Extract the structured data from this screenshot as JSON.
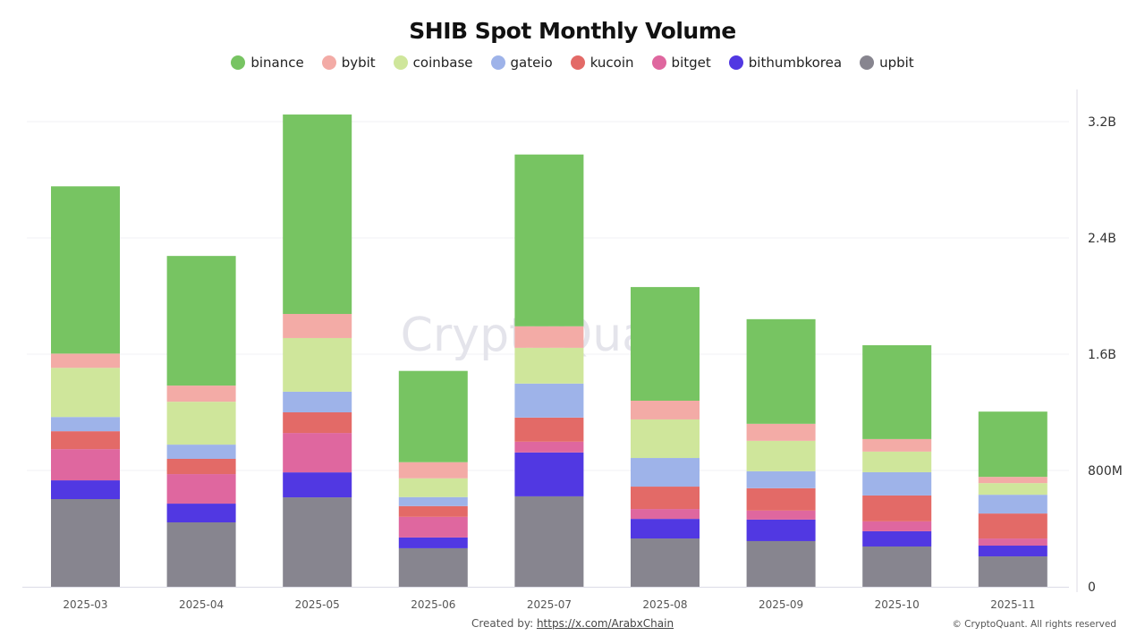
{
  "chart_data": {
    "type": "bar",
    "stacked": true,
    "title": "SHIB Spot Monthly Volume",
    "xlabel": "",
    "ylabel": "",
    "ylim": [
      0,
      3200000000
    ],
    "y_axis_position": "right",
    "yticks": [
      0,
      800000000,
      1600000000,
      2400000000,
      3200000000
    ],
    "ytick_labels": [
      "0",
      "800M",
      "1.6B",
      "2.4B",
      "3.2B"
    ],
    "grid": true,
    "legend_position": "top-center",
    "categories": [
      "2025-03",
      "2025-04",
      "2025-05",
      "2025-06",
      "2025-07",
      "2025-08",
      "2025-09",
      "2025-10",
      "2025-11"
    ],
    "series": [
      {
        "name": "upbit",
        "color": "#87858f",
        "values": [
          603000000,
          443000000,
          615000000,
          265000000,
          622000000,
          332000000,
          314000000,
          277000000,
          209000000
        ]
      },
      {
        "name": "bithumbkorea",
        "color": "#5138e2",
        "values": [
          129000000,
          129000000,
          172000000,
          74000000,
          302000000,
          135000000,
          148000000,
          105000000,
          74000000
        ]
      },
      {
        "name": "bitget",
        "color": "#df679f",
        "values": [
          215000000,
          203000000,
          271000000,
          142000000,
          74000000,
          68000000,
          62000000,
          68000000,
          49000000
        ]
      },
      {
        "name": "kucoin",
        "color": "#e36a67",
        "values": [
          123000000,
          105000000,
          142000000,
          74000000,
          166000000,
          154000000,
          154000000,
          178000000,
          172000000
        ]
      },
      {
        "name": "gateio",
        "color": "#9eb3e9",
        "values": [
          98000000,
          98000000,
          142000000,
          62000000,
          234000000,
          197000000,
          117000000,
          160000000,
          129000000
        ]
      },
      {
        "name": "coinbase",
        "color": "#cfe69b",
        "values": [
          338000000,
          295000000,
          369000000,
          129000000,
          246000000,
          265000000,
          209000000,
          142000000,
          80000000
        ]
      },
      {
        "name": "bybit",
        "color": "#f3aba6",
        "values": [
          98000000,
          111000000,
          166000000,
          111000000,
          148000000,
          129000000,
          117000000,
          86000000,
          43000000
        ]
      },
      {
        "name": "binance",
        "color": "#77c462",
        "values": [
          1151000000,
          892000000,
          1372000000,
          628000000,
          1182000000,
          782000000,
          720000000,
          646000000,
          449000000
        ]
      }
    ]
  },
  "legend": {
    "items": [
      {
        "name": "binance",
        "color": "#77c462"
      },
      {
        "name": "bybit",
        "color": "#f3aba6"
      },
      {
        "name": "coinbase",
        "color": "#cfe69b"
      },
      {
        "name": "gateio",
        "color": "#9eb3e9"
      },
      {
        "name": "kucoin",
        "color": "#e36a67"
      },
      {
        "name": "bitget",
        "color": "#df679f"
      },
      {
        "name": "bithumbkorea",
        "color": "#5138e2"
      },
      {
        "name": "upbit",
        "color": "#87858f"
      }
    ]
  },
  "watermark": "CryptoQuant",
  "footer": {
    "created_label": "Created by: ",
    "created_link": "https://x.com/ArabxChain",
    "copyright": "© CryptoQuant. All rights reserved"
  }
}
